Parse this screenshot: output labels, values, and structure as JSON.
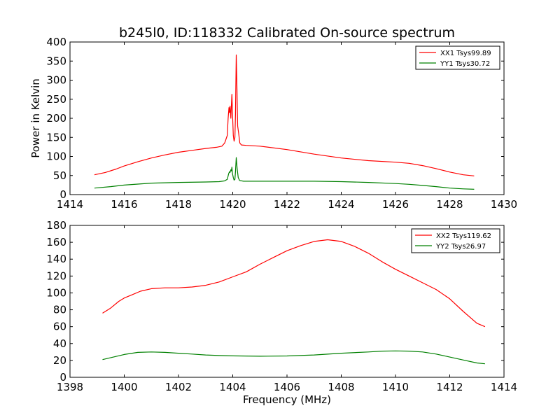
{
  "chart_data": [
    {
      "type": "line",
      "title": "b245l0, ID:118332 Calibrated On-source spectrum",
      "xlabel": "",
      "ylabel": "Power in Kelvin",
      "xlim": [
        1414,
        1430
      ],
      "ylim": [
        0,
        400
      ],
      "xticks": [
        "1414",
        "1416",
        "1418",
        "1420",
        "1422",
        "1424",
        "1426",
        "1428",
        "1430"
      ],
      "yticks": [
        "0",
        "50",
        "100",
        "150",
        "200",
        "250",
        "300",
        "350",
        "400"
      ],
      "legend_position": "top-right",
      "series": [
        {
          "name": "XX1 Tsys99.89",
          "color": "#ff0000",
          "points": [
            [
              1414.9,
              52
            ],
            [
              1415.3,
              58
            ],
            [
              1415.7,
              67
            ],
            [
              1416.0,
              75
            ],
            [
              1416.5,
              86
            ],
            [
              1417.0,
              96
            ],
            [
              1417.5,
              104
            ],
            [
              1418.0,
              111
            ],
            [
              1418.5,
              116
            ],
            [
              1419.0,
              121
            ],
            [
              1419.4,
              124
            ],
            [
              1419.6,
              127
            ],
            [
              1419.7,
              135
            ],
            [
              1419.75,
              145
            ],
            [
              1419.8,
              155
            ],
            [
              1419.83,
              200
            ],
            [
              1419.86,
              228
            ],
            [
              1419.88,
              215
            ],
            [
              1419.9,
              232
            ],
            [
              1419.93,
              200
            ],
            [
              1419.95,
              235
            ],
            [
              1419.97,
              263
            ],
            [
              1419.99,
              215
            ],
            [
              1420.02,
              155
            ],
            [
              1420.05,
              140
            ],
            [
              1420.08,
              150
            ],
            [
              1420.1,
              210
            ],
            [
              1420.13,
              366
            ],
            [
              1420.15,
              300
            ],
            [
              1420.18,
              180
            ],
            [
              1420.22,
              160
            ],
            [
              1420.26,
              135
            ],
            [
              1420.32,
              130
            ],
            [
              1420.5,
              129
            ],
            [
              1421.0,
              127
            ],
            [
              1422.0,
              118
            ],
            [
              1423.0,
              106
            ],
            [
              1424.0,
              96
            ],
            [
              1425.0,
              89
            ],
            [
              1426.0,
              85
            ],
            [
              1426.5,
              82
            ],
            [
              1427.0,
              76
            ],
            [
              1427.5,
              68
            ],
            [
              1428.0,
              59
            ],
            [
              1428.5,
              52
            ],
            [
              1428.9,
              49
            ]
          ]
        },
        {
          "name": "YY1 Tsys30.72",
          "color": "#008000",
          "points": [
            [
              1414.9,
              17
            ],
            [
              1415.5,
              21
            ],
            [
              1416.0,
              25
            ],
            [
              1417.0,
              30
            ],
            [
              1418.0,
              32
            ],
            [
              1419.0,
              33
            ],
            [
              1419.5,
              34
            ],
            [
              1419.7,
              36
            ],
            [
              1419.8,
              40
            ],
            [
              1419.85,
              55
            ],
            [
              1419.88,
              60
            ],
            [
              1419.9,
              58
            ],
            [
              1419.93,
              65
            ],
            [
              1419.95,
              62
            ],
            [
              1419.97,
              72
            ],
            [
              1419.99,
              55
            ],
            [
              1420.02,
              45
            ],
            [
              1420.05,
              38
            ],
            [
              1420.08,
              40
            ],
            [
              1420.1,
              60
            ],
            [
              1420.13,
              97
            ],
            [
              1420.16,
              70
            ],
            [
              1420.2,
              45
            ],
            [
              1420.25,
              37
            ],
            [
              1420.4,
              35
            ],
            [
              1421.0,
              35
            ],
            [
              1422.0,
              35
            ],
            [
              1423.0,
              35
            ],
            [
              1424.0,
              34
            ],
            [
              1425.0,
              32
            ],
            [
              1426.0,
              29
            ],
            [
              1426.5,
              27
            ],
            [
              1427.0,
              24
            ],
            [
              1427.5,
              21
            ],
            [
              1428.0,
              17
            ],
            [
              1428.5,
              15
            ],
            [
              1428.9,
              14
            ]
          ]
        }
      ]
    },
    {
      "type": "line",
      "title": "",
      "xlabel": "Frequency (MHz)",
      "ylabel": "",
      "xlim": [
        1398,
        1414
      ],
      "ylim": [
        0,
        180
      ],
      "xticks": [
        "1398",
        "1400",
        "1402",
        "1404",
        "1406",
        "1408",
        "1410",
        "1412",
        "1414"
      ],
      "yticks": [
        "0",
        "20",
        "40",
        "60",
        "80",
        "100",
        "120",
        "140",
        "160",
        "180"
      ],
      "legend_position": "top-right",
      "series": [
        {
          "name": "XX2 Tsys119.62",
          "color": "#ff0000",
          "points": [
            [
              1399.2,
              76
            ],
            [
              1399.5,
              82
            ],
            [
              1399.8,
              90
            ],
            [
              1400.0,
              94
            ],
            [
              1400.3,
              98
            ],
            [
              1400.6,
              102
            ],
            [
              1401.0,
              105
            ],
            [
              1401.5,
              106
            ],
            [
              1402.0,
              106
            ],
            [
              1402.5,
              107
            ],
            [
              1403.0,
              109
            ],
            [
              1403.5,
              113
            ],
            [
              1404.0,
              119
            ],
            [
              1404.5,
              125
            ],
            [
              1405.0,
              134
            ],
            [
              1405.5,
              142
            ],
            [
              1406.0,
              150
            ],
            [
              1406.5,
              156
            ],
            [
              1407.0,
              161
            ],
            [
              1407.5,
              163
            ],
            [
              1408.0,
              161
            ],
            [
              1408.5,
              155
            ],
            [
              1409.0,
              147
            ],
            [
              1409.5,
              137
            ],
            [
              1410.0,
              128
            ],
            [
              1410.5,
              120
            ],
            [
              1411.0,
              112
            ],
            [
              1411.5,
              104
            ],
            [
              1412.0,
              93
            ],
            [
              1412.5,
              78
            ],
            [
              1413.0,
              64
            ],
            [
              1413.3,
              60
            ]
          ]
        },
        {
          "name": "YY2 Tsys26.97",
          "color": "#008000",
          "points": [
            [
              1399.2,
              21
            ],
            [
              1399.6,
              24
            ],
            [
              1400.0,
              27
            ],
            [
              1400.5,
              29.5
            ],
            [
              1401.0,
              30
            ],
            [
              1401.5,
              29.5
            ],
            [
              1402.0,
              28.5
            ],
            [
              1402.5,
              27.5
            ],
            [
              1403.0,
              26.5
            ],
            [
              1403.5,
              25.8
            ],
            [
              1404.0,
              25.4
            ],
            [
              1405.0,
              25
            ],
            [
              1406.0,
              25.3
            ],
            [
              1407.0,
              26.5
            ],
            [
              1408.0,
              28.5
            ],
            [
              1409.0,
              30
            ],
            [
              1409.5,
              31
            ],
            [
              1410.0,
              31.3
            ],
            [
              1410.5,
              31
            ],
            [
              1411.0,
              30
            ],
            [
              1411.5,
              27.5
            ],
            [
              1412.0,
              24
            ],
            [
              1412.5,
              20.5
            ],
            [
              1413.0,
              17
            ],
            [
              1413.3,
              16
            ]
          ]
        }
      ]
    }
  ]
}
